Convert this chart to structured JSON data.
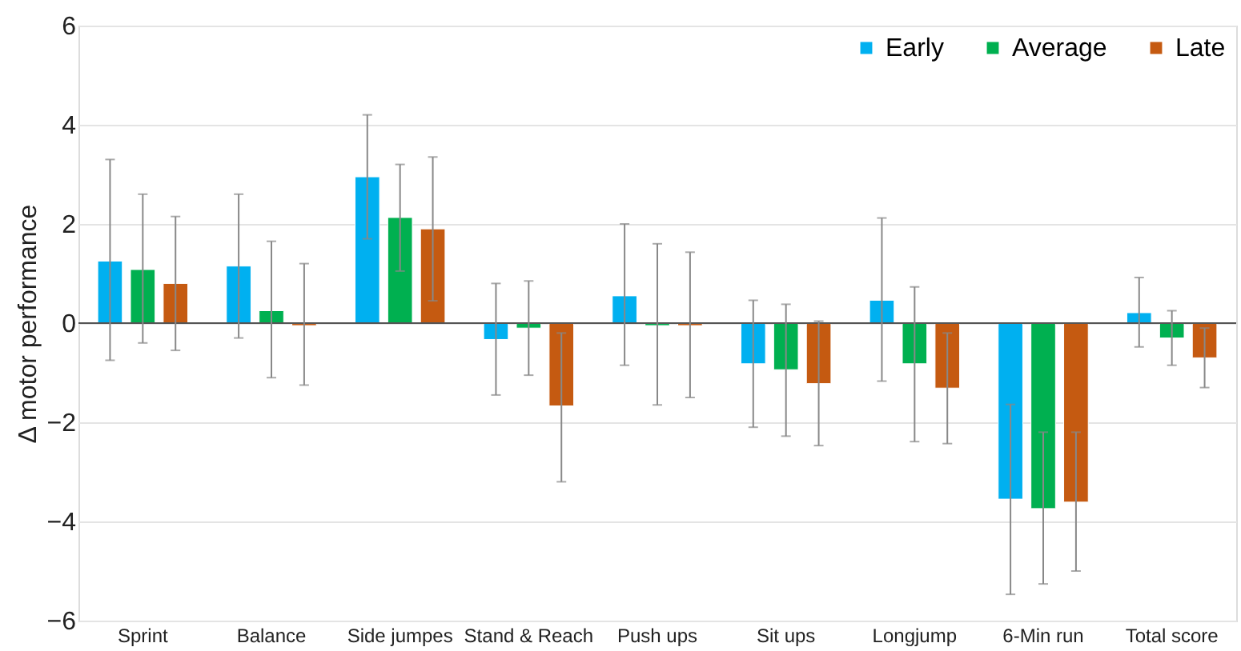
{
  "chart_data": {
    "type": "bar",
    "ylabel": "Δ motor performance",
    "categories": [
      "Sprint",
      "Balance",
      "Side jumpes",
      "Stand & Reach",
      "Push ups",
      "Sit ups",
      "Longjump",
      "6-Min run",
      "Total score"
    ],
    "series": [
      {
        "name": "Early",
        "color": "#00b0f0",
        "values": [
          1.25,
          1.15,
          2.95,
          -0.33,
          0.55,
          -0.82,
          0.46,
          -3.55,
          0.21
        ],
        "errors": [
          [
            -0.75,
            3.3
          ],
          [
            -0.3,
            2.6
          ],
          [
            1.7,
            4.2
          ],
          [
            -1.45,
            0.8
          ],
          [
            -0.85,
            2.0
          ],
          [
            -2.1,
            0.46
          ],
          [
            -1.17,
            2.12
          ],
          [
            -5.47,
            -1.64
          ],
          [
            -0.48,
            0.92
          ]
        ]
      },
      {
        "name": "Average",
        "color": "#00b050",
        "values": [
          1.08,
          0.25,
          2.13,
          -0.1,
          -0.05,
          -0.94,
          -0.82,
          -3.74,
          -0.3
        ],
        "errors": [
          [
            -0.4,
            2.6
          ],
          [
            -1.1,
            1.65
          ],
          [
            1.05,
            3.2
          ],
          [
            -1.05,
            0.85
          ],
          [
            -1.65,
            1.6
          ],
          [
            -2.28,
            0.38
          ],
          [
            -2.39,
            0.73
          ],
          [
            -5.26,
            -2.2
          ],
          [
            -0.85,
            0.25
          ]
        ]
      },
      {
        "name": "Late",
        "color": "#c55a11",
        "values": [
          0.8,
          -0.05,
          1.9,
          -1.67,
          -0.05,
          -1.22,
          -1.31,
          -3.61,
          -0.7
        ],
        "errors": [
          [
            -0.55,
            2.15
          ],
          [
            -1.25,
            1.2
          ],
          [
            0.45,
            3.35
          ],
          [
            -3.2,
            -0.2
          ],
          [
            -1.5,
            1.43
          ],
          [
            -2.47,
            0.04
          ],
          [
            -2.43,
            -0.2
          ],
          [
            -5.0,
            -2.2
          ],
          [
            -1.3,
            -0.1
          ]
        ]
      }
    ],
    "ylim": [
      -6,
      6
    ],
    "yticks": [
      {
        "value": -6,
        "label": "−6"
      },
      {
        "value": -4,
        "label": "−4"
      },
      {
        "value": -2,
        "label": "−2"
      },
      0,
      2,
      4,
      6
    ],
    "grid": "y",
    "legend": "top right"
  }
}
